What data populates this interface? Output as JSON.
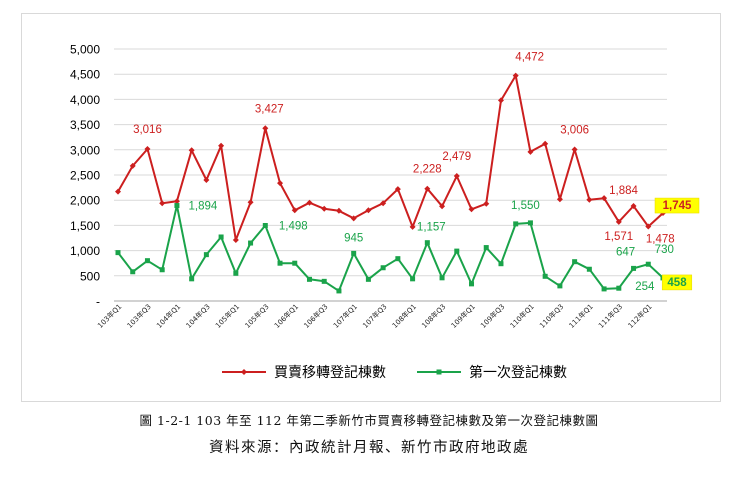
{
  "chart_data": {
    "type": "line",
    "title": "",
    "xlabel": "",
    "ylabel": "",
    "ylim": [
      0,
      5000
    ],
    "yticks": [
      "-",
      "500",
      "1,000",
      "1,500",
      "2,000",
      "2,500",
      "3,000",
      "3,500",
      "4,000",
      "4,500",
      "5,000"
    ],
    "grid": "horizontal",
    "legend_position": "bottom",
    "x_tick_labels": [
      "103年Q1",
      "103年Q3",
      "104年Q1",
      "104年Q3",
      "105年Q1",
      "105年Q3",
      "106年Q1",
      "106年Q3",
      "107年Q1",
      "107年Q3",
      "108年Q1",
      "108年Q3",
      "109年Q1",
      "109年Q3",
      "110年Q1",
      "110年Q3",
      "111年Q1",
      "111年Q3",
      "112年Q1"
    ],
    "categories": [
      "103Q1",
      "103Q2",
      "103Q3",
      "103Q4",
      "104Q1",
      "104Q2",
      "104Q3",
      "104Q4",
      "105Q1",
      "105Q2",
      "105Q3",
      "105Q4",
      "106Q1",
      "106Q2",
      "106Q3",
      "106Q4",
      "107Q1",
      "107Q2",
      "107Q3",
      "107Q4",
      "108Q1",
      "108Q2",
      "108Q3",
      "108Q4",
      "109Q1",
      "109Q2",
      "109Q3",
      "109Q4",
      "110Q1",
      "110Q2",
      "110Q3",
      "110Q4",
      "111Q1",
      "111Q2",
      "111Q3",
      "111Q4",
      "112Q1",
      "112Q2"
    ],
    "series": [
      {
        "name": "買賣移轉登記棟數",
        "color": "#cc1f1f",
        "marker": "diamond",
        "values": [
          2170,
          2680,
          3016,
          1940,
          1980,
          2990,
          2400,
          3080,
          1210,
          1960,
          3427,
          2340,
          1800,
          1950,
          1830,
          1790,
          1640,
          1800,
          1940,
          2220,
          1470,
          2228,
          1880,
          2479,
          1820,
          1930,
          3980,
          4472,
          2960,
          3120,
          2020,
          3006,
          2010,
          2040,
          1571,
          1884,
          1478,
          1745
        ]
      },
      {
        "name": "第一次登記棟數",
        "color": "#1aa34a",
        "marker": "square",
        "values": [
          960,
          580,
          800,
          620,
          1894,
          440,
          920,
          1270,
          550,
          1150,
          1498,
          750,
          750,
          430,
          390,
          200,
          945,
          430,
          660,
          840,
          440,
          1157,
          460,
          990,
          340,
          1060,
          740,
          1530,
          1550,
          490,
          300,
          780,
          630,
          240,
          254,
          647,
          730,
          458
        ]
      }
    ],
    "data_labels": [
      {
        "series": 0,
        "index": 2,
        "text": "3,016"
      },
      {
        "series": 0,
        "index": 10,
        "text": "3,427"
      },
      {
        "series": 0,
        "index": 21,
        "text": "2,228"
      },
      {
        "series": 0,
        "index": 23,
        "text": "2,479"
      },
      {
        "series": 0,
        "index": 27,
        "text": "4,472"
      },
      {
        "series": 0,
        "index": 31,
        "text": "3,006"
      },
      {
        "series": 0,
        "index": 34,
        "text": "1,571"
      },
      {
        "series": 0,
        "index": 35,
        "text": "1,884"
      },
      {
        "series": 0,
        "index": 36,
        "text": "1,478"
      },
      {
        "series": 0,
        "index": 37,
        "text": "1,745",
        "highlight": true
      },
      {
        "series": 1,
        "index": 4,
        "text": "1,894"
      },
      {
        "series": 1,
        "index": 10,
        "text": "1,498"
      },
      {
        "series": 1,
        "index": 16,
        "text": "945"
      },
      {
        "series": 1,
        "index": 21,
        "text": "1,157"
      },
      {
        "series": 1,
        "index": 28,
        "text": "1,550"
      },
      {
        "series": 1,
        "index": 34,
        "text": "254"
      },
      {
        "series": 1,
        "index": 35,
        "text": "647"
      },
      {
        "series": 1,
        "index": 36,
        "text": "730"
      },
      {
        "series": 1,
        "index": 37,
        "text": "458",
        "highlight": true
      }
    ],
    "highlight_color": "#ffff00"
  },
  "captions": {
    "figure_caption": "圖 1-2-1 103 年至 112 年第二季新竹市買賣移轉登記棟數及第一次登記棟數圖",
    "source": "資料來源：內政統計月報、新竹市政府地政處"
  }
}
